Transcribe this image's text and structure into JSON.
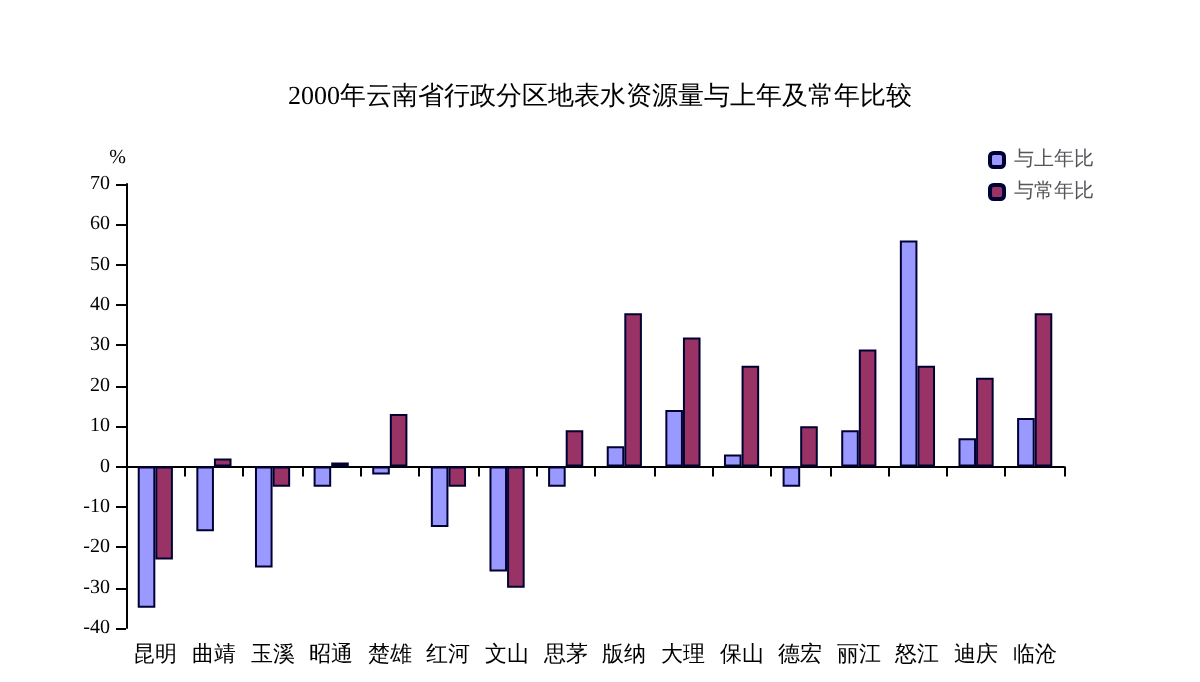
{
  "chart_data": {
    "type": "bar",
    "title": "2000年云南省行政分区地表水资源量与上年及常年比较",
    "ylabel": "%",
    "categories": [
      "昆明",
      "曲靖",
      "玉溪",
      "昭通",
      "楚雄",
      "红河",
      "文山",
      "思茅",
      "版纳",
      "大理",
      "保山",
      "德宏",
      "丽江",
      "怒江",
      "迪庆",
      "临沧"
    ],
    "series": [
      {
        "name": "与上年比",
        "color": "#9999ff",
        "values": [
          -35,
          -16,
          -25,
          -5,
          -2,
          -15,
          -26,
          -5,
          5,
          14,
          3,
          -5,
          9,
          56,
          7,
          12
        ]
      },
      {
        "name": "与常年比",
        "color": "#993366",
        "values": [
          -23,
          2,
          -5,
          1,
          13,
          -5,
          -30,
          9,
          38,
          32,
          25,
          10,
          29,
          25,
          22,
          38
        ]
      }
    ],
    "ylim": [
      -40,
      70
    ],
    "yticks": [
      -40,
      -30,
      -20,
      -10,
      0,
      10,
      20,
      30,
      40,
      50,
      60,
      70
    ],
    "legend": "top right"
  }
}
